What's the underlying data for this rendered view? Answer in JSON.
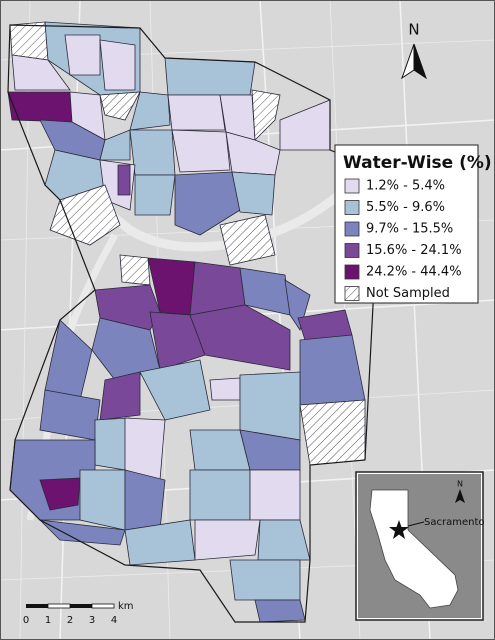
{
  "legend": {
    "title": "Water-Wise (%)",
    "items": [
      {
        "label": "1.2% - 5.4%",
        "color": "#e2daee"
      },
      {
        "label": "5.5% - 9.6%",
        "color": "#a8c3d8"
      },
      {
        "label": "9.7% - 15.5%",
        "color": "#7b84bd"
      },
      {
        "label": "15.6% - 24.1%",
        "color": "#7a4899"
      },
      {
        "label": "24.2% - 44.4%",
        "color": "#6b136f"
      },
      {
        "label": "Not Sampled"
      }
    ]
  },
  "north_arrow": {
    "label": "N"
  },
  "scale_bar": {
    "ticks": [
      0,
      1,
      2,
      3,
      4
    ],
    "unit": "km"
  },
  "inset": {
    "north_label": "N",
    "city_label": "Sacramento"
  }
}
